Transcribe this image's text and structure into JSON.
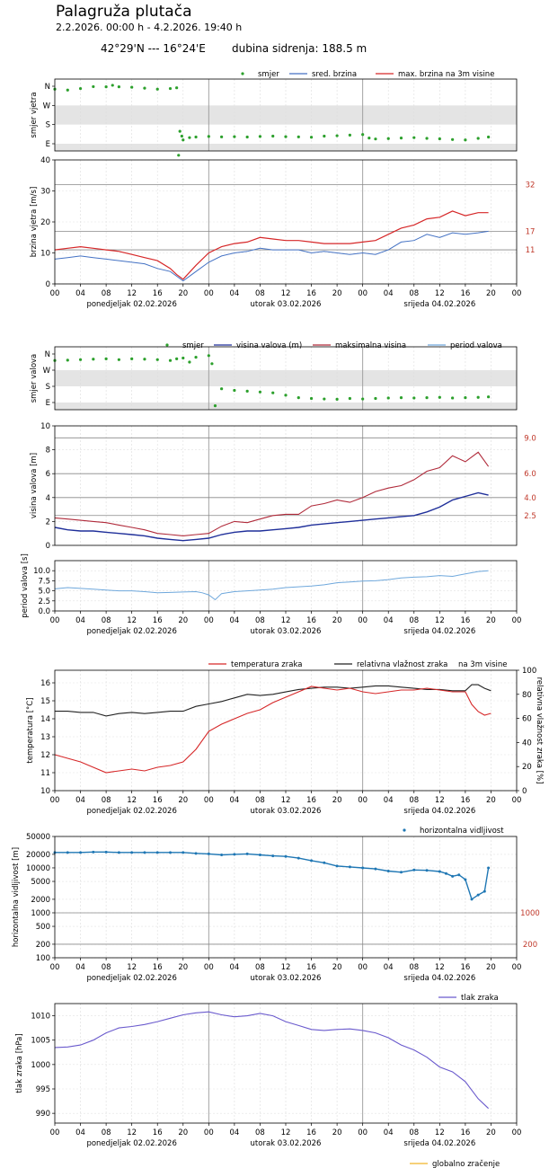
{
  "header": {
    "title": "Palagruža plutača",
    "range": "2.2.2026. 00:00 h - 4.2.2026. 19:40 h",
    "coords": "42°29'N --- 16°24'E",
    "depth": "dubina sidrenja: 188.5 m"
  },
  "x_axis": {
    "hour_ticks": [
      "00",
      "04",
      "08",
      "12",
      "16",
      "20",
      "00",
      "04",
      "08",
      "12",
      "16",
      "20",
      "00",
      "04",
      "08",
      "12",
      "16",
      "20",
      "00"
    ],
    "day_labels": [
      "ponedjeljak  02.02.2026",
      "utorak  03.02.2026",
      "srijeda  04.02.2026"
    ]
  },
  "colors": {
    "green": "#2ca02c",
    "blue": "#4472c4",
    "red": "#d62728",
    "navy": "#1f2f9a",
    "crimson": "#b02a3a",
    "lightblue": "#6fa8dc",
    "dark": "#222222",
    "steel": "#1f77b4",
    "purple": "#6a5acd",
    "orange": "#f0b429"
  },
  "chart_data": [
    {
      "id": "wind_dir",
      "type": "scatter",
      "ylabel": "smjer vjetra",
      "y_ticks": [
        "N",
        "W",
        "S",
        "E"
      ],
      "legend": [
        "smjer",
        "sred. brzina",
        "max. brzina na 3m visine"
      ],
      "legend_placement": "top-right",
      "x_hours": [
        0,
        2,
        4,
        6,
        8,
        9,
        10,
        12,
        14,
        16,
        18,
        19,
        19.3,
        19.5,
        19.8,
        20,
        21,
        22,
        24,
        26,
        28,
        30,
        32,
        34,
        36,
        38,
        40,
        42,
        44,
        46,
        48,
        49,
        50,
        52,
        54,
        56,
        58,
        60,
        62,
        64,
        66,
        67.6
      ],
      "values": [
        0.15,
        0.2,
        0.12,
        0.02,
        0.03,
        -0.05,
        0.03,
        0.05,
        0.1,
        0.15,
        0.12,
        0.08,
        3.6,
        2.35,
        2.6,
        2.8,
        2.68,
        2.65,
        2.62,
        2.64,
        2.63,
        2.65,
        2.62,
        2.6,
        2.63,
        2.64,
        2.66,
        2.6,
        2.58,
        2.55,
        2.52,
        2.7,
        2.75,
        2.73,
        2.7,
        2.68,
        2.72,
        2.74,
        2.78,
        2.8,
        2.72,
        2.65
      ]
    },
    {
      "id": "wind_speed",
      "type": "line",
      "ylabel": "brzina vjetra [m/s]",
      "ylim": [
        0,
        40
      ],
      "y_ticks": [
        0,
        10,
        20,
        30,
        40
      ],
      "ref_lines": [
        11,
        17,
        32
      ],
      "ref_labels": [
        "11",
        "17",
        "32"
      ],
      "x_hours": [
        0,
        2,
        4,
        6,
        8,
        10,
        12,
        14,
        16,
        18,
        19,
        20,
        22,
        24,
        26,
        28,
        30,
        32,
        34,
        36,
        38,
        40,
        42,
        44,
        46,
        48,
        50,
        52,
        54,
        56,
        58,
        60,
        62,
        64,
        66,
        67.6
      ],
      "series": [
        {
          "name": "sred. brzina",
          "values": [
            8,
            8.5,
            9,
            8.5,
            8,
            7.5,
            7,
            6.5,
            5,
            4,
            2.5,
            1,
            4,
            7,
            9,
            10,
            10.5,
            11.5,
            11,
            11,
            11,
            10,
            10.5,
            10,
            9.5,
            10,
            9.5,
            11,
            13.5,
            14,
            16,
            15,
            16.5,
            16,
            16.5,
            17
          ]
        },
        {
          "name": "max. brzina na 3m visine",
          "values": [
            11,
            11.5,
            12,
            11.5,
            11,
            10.5,
            9.5,
            8.5,
            7.5,
            5,
            3,
            1.5,
            6,
            10,
            12,
            13,
            13.5,
            15,
            14.5,
            14,
            14,
            13.5,
            13,
            13,
            13,
            13.5,
            14,
            16,
            18,
            19,
            21,
            21.5,
            23.5,
            22,
            23,
            23
          ]
        }
      ]
    },
    {
      "id": "wave_dir",
      "type": "scatter",
      "ylabel": "smjer valova",
      "y_ticks": [
        "N",
        "W",
        "S",
        "E"
      ],
      "legend": [
        "smjer",
        "visina valova (m)",
        "maksimalna visina",
        "period valova"
      ],
      "legend_placement": "top-right",
      "x_hours": [
        0,
        2,
        4,
        6,
        8,
        10,
        12,
        14,
        16,
        18,
        19,
        20,
        21,
        22,
        24,
        24.5,
        25,
        26,
        28,
        30,
        32,
        34,
        36,
        38,
        40,
        42,
        44,
        46,
        48,
        50,
        52,
        54,
        56,
        58,
        60,
        62,
        64,
        66,
        67.6
      ],
      "values": [
        0.4,
        0.38,
        0.35,
        0.32,
        0.3,
        0.35,
        0.3,
        0.32,
        0.35,
        0.4,
        0.3,
        0.25,
        0.5,
        0.2,
        0.1,
        0.6,
        3.2,
        2.15,
        2.25,
        2.3,
        2.35,
        2.4,
        2.55,
        2.7,
        2.75,
        2.78,
        2.8,
        2.75,
        2.78,
        2.75,
        2.72,
        2.7,
        2.72,
        2.7,
        2.68,
        2.72,
        2.7,
        2.68,
        2.65
      ]
    },
    {
      "id": "wave_height",
      "type": "line",
      "ylabel": "visina valova [m]",
      "ylim": [
        0,
        10
      ],
      "y_ticks": [
        0,
        2,
        4,
        6,
        8,
        10
      ],
      "ref_lines": [
        2.5,
        4.0,
        6.0,
        9.0
      ],
      "ref_labels": [
        "2.5",
        "4.0",
        "6.0",
        "9.0"
      ],
      "x_hours": [
        0,
        2,
        4,
        6,
        8,
        10,
        12,
        14,
        16,
        18,
        20,
        22,
        24,
        26,
        28,
        30,
        32,
        34,
        36,
        38,
        40,
        42,
        44,
        46,
        48,
        50,
        52,
        54,
        56,
        58,
        60,
        62,
        64,
        66,
        67.6
      ],
      "series": [
        {
          "name": "visina valova (m)",
          "values": [
            1.5,
            1.3,
            1.2,
            1.2,
            1.1,
            1.0,
            0.9,
            0.8,
            0.6,
            0.5,
            0.4,
            0.5,
            0.6,
            0.9,
            1.1,
            1.2,
            1.2,
            1.3,
            1.4,
            1.5,
            1.7,
            1.8,
            1.9,
            2.0,
            2.1,
            2.2,
            2.3,
            2.4,
            2.5,
            2.8,
            3.2,
            3.8,
            4.1,
            4.4,
            4.2
          ]
        },
        {
          "name": "maksimalna visina",
          "values": [
            2.3,
            2.2,
            2.1,
            2.0,
            1.9,
            1.7,
            1.5,
            1.3,
            1.0,
            0.9,
            0.8,
            0.9,
            1.0,
            1.6,
            2.0,
            1.9,
            2.2,
            2.5,
            2.6,
            2.6,
            3.3,
            3.5,
            3.8,
            3.6,
            4.0,
            4.5,
            4.8,
            5.0,
            5.5,
            6.2,
            6.5,
            7.5,
            7.0,
            7.8,
            6.6
          ]
        }
      ]
    },
    {
      "id": "wave_period",
      "type": "line",
      "ylabel": "period valova [s]",
      "ylim": [
        0,
        12.5
      ],
      "y_ticks": [
        0.0,
        2.5,
        5.0,
        7.5,
        10.0
      ],
      "x_hours": [
        0,
        2,
        4,
        6,
        8,
        10,
        12,
        14,
        16,
        18,
        20,
        22,
        23,
        24,
        25,
        26,
        28,
        30,
        32,
        34,
        36,
        38,
        40,
        42,
        44,
        46,
        48,
        50,
        52,
        54,
        56,
        58,
        60,
        62,
        64,
        66,
        67.6
      ],
      "series": [
        {
          "name": "period valova",
          "values": [
            5.5,
            5.8,
            5.6,
            5.4,
            5.2,
            5.0,
            5.0,
            4.8,
            4.5,
            4.6,
            4.7,
            4.8,
            4.5,
            4.0,
            2.8,
            4.3,
            4.8,
            5.0,
            5.2,
            5.4,
            5.8,
            6.0,
            6.2,
            6.5,
            7.0,
            7.2,
            7.4,
            7.5,
            7.8,
            8.2,
            8.4,
            8.5,
            8.8,
            8.6,
            9.2,
            9.8,
            10.0
          ]
        }
      ]
    },
    {
      "id": "temp_humidity",
      "type": "line",
      "ylabel": "temperatura [°C]",
      "ylabel_right": "relativna vlažnost zraka [%]",
      "ylim": [
        10,
        16.7
      ],
      "ylim_right": [
        0,
        100
      ],
      "y_ticks": [
        10,
        11,
        12,
        13,
        14,
        15,
        16
      ],
      "y_ticks_right": [
        0,
        20,
        40,
        60,
        80,
        100
      ],
      "legend": [
        "temperatura zraka",
        "relativna vlažnost zraka",
        "na 3m visine"
      ],
      "x_hours": [
        0,
        2,
        4,
        6,
        8,
        10,
        12,
        14,
        16,
        18,
        20,
        22,
        24,
        26,
        28,
        30,
        32,
        34,
        36,
        38,
        40,
        42,
        44,
        46,
        48,
        50,
        52,
        54,
        56,
        58,
        60,
        62,
        64,
        65,
        66,
        67,
        68
      ],
      "series": [
        {
          "name": "temperatura zraka",
          "values": [
            12.0,
            11.8,
            11.6,
            11.3,
            11.0,
            11.1,
            11.2,
            11.1,
            11.3,
            11.4,
            11.6,
            12.3,
            13.3,
            13.7,
            14.0,
            14.3,
            14.5,
            14.9,
            15.2,
            15.5,
            15.8,
            15.7,
            15.6,
            15.7,
            15.5,
            15.4,
            15.5,
            15.6,
            15.6,
            15.7,
            15.6,
            15.5,
            15.5,
            14.8,
            14.4,
            14.2,
            14.3
          ]
        },
        {
          "name": "relativna vlažnost zraka",
          "values": [
            66,
            66,
            65,
            65,
            62,
            64,
            65,
            64,
            65,
            66,
            66,
            70,
            72,
            74,
            77,
            80,
            79,
            80,
            82,
            84,
            85,
            86,
            86,
            85,
            86,
            87,
            87,
            86,
            85,
            84,
            84,
            83,
            83,
            88,
            88,
            85,
            83
          ]
        }
      ]
    },
    {
      "id": "visibility",
      "type": "scatter",
      "ylabel": "horizontalna vidljivost [m]",
      "ylim": [
        100,
        50000
      ],
      "y_scale": "log",
      "y_ticks": [
        100,
        200,
        500,
        1000,
        2000,
        5000,
        10000,
        20000,
        50000
      ],
      "ref_lines": [
        200,
        1000
      ],
      "ref_labels": [
        "200",
        "1000"
      ],
      "legend": [
        "horizontalna vidljivost"
      ],
      "x_hours": [
        0,
        2,
        4,
        6,
        8,
        10,
        12,
        14,
        16,
        18,
        20,
        22,
        24,
        26,
        28,
        30,
        32,
        34,
        36,
        38,
        40,
        42,
        44,
        46,
        48,
        50,
        52,
        54,
        56,
        58,
        60,
        61,
        62,
        63,
        64,
        65,
        66,
        67,
        67.6
      ],
      "values": [
        22000,
        22000,
        22000,
        22500,
        22500,
        22000,
        22000,
        22000,
        22000,
        22000,
        22000,
        21000,
        20500,
        19500,
        20000,
        20500,
        19500,
        18500,
        18000,
        16500,
        14500,
        13000,
        11000,
        10500,
        10000,
        9500,
        8500,
        8000,
        9000,
        8800,
        8300,
        7500,
        6500,
        7000,
        5500,
        2000,
        2500,
        3000,
        10000
      ]
    },
    {
      "id": "pressure",
      "type": "line",
      "ylabel": "tlak zraka [hPa]",
      "ylim": [
        988,
        1012.5
      ],
      "y_ticks": [
        990,
        995,
        1000,
        1005,
        1010
      ],
      "legend": [
        "tlak zraka",
        "globalno zračenje"
      ],
      "x_hours": [
        0,
        2,
        4,
        6,
        8,
        10,
        12,
        14,
        16,
        18,
        20,
        22,
        24,
        26,
        28,
        30,
        32,
        34,
        36,
        38,
        40,
        42,
        44,
        46,
        48,
        50,
        52,
        54,
        56,
        58,
        60,
        62,
        64,
        66,
        67.6
      ],
      "series": [
        {
          "name": "tlak zraka",
          "values": [
            1003.5,
            1003.6,
            1004,
            1005,
            1006.5,
            1007.5,
            1007.8,
            1008.2,
            1008.8,
            1009.5,
            1010.2,
            1010.6,
            1010.8,
            1010.2,
            1009.8,
            1010,
            1010.5,
            1010,
            1008.8,
            1008,
            1007.2,
            1007,
            1007.2,
            1007.3,
            1007,
            1006.5,
            1005.5,
            1004,
            1003,
            1001.5,
            999.5,
            998.5,
            996.5,
            993,
            991
          ]
        }
      ]
    }
  ]
}
